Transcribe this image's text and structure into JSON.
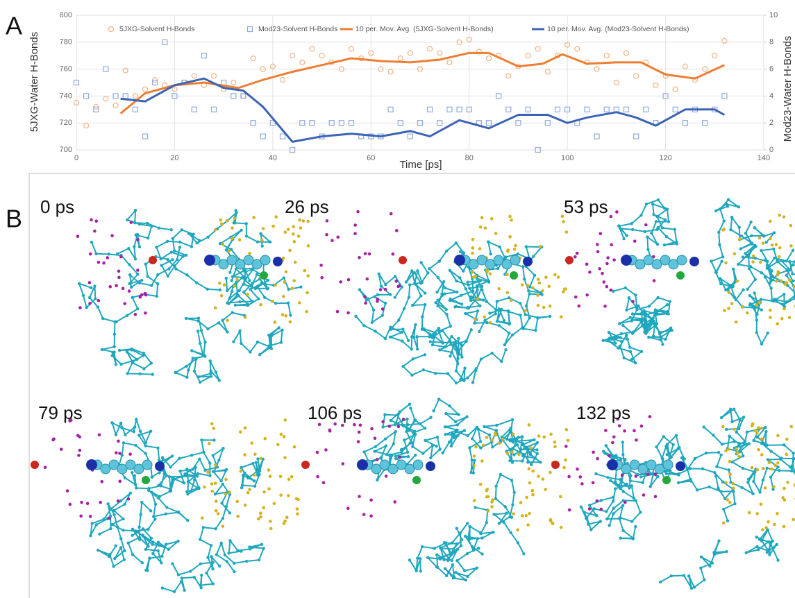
{
  "panel_labels": [
    "A",
    "B"
  ],
  "chart_data": {
    "type": "scatter",
    "xlabel": "Time [ps]",
    "ylabel": "5JXG-Water H-Bonds",
    "y2label": "Mod23-Water H-Bonds",
    "xlim": [
      0,
      140
    ],
    "xticks": [
      0,
      20,
      40,
      60,
      80,
      100,
      120,
      140
    ],
    "ylim": [
      700,
      800
    ],
    "yticks": [
      700,
      720,
      740,
      760,
      780,
      800
    ],
    "y2lim": [
      0,
      10
    ],
    "y2ticks": [
      0,
      2,
      4,
      6,
      8,
      10
    ],
    "grid": true,
    "legend": "top",
    "series": [
      {
        "name": "5JXG-Solvent H-Bonds",
        "type": "scatter",
        "marker": "circle",
        "color": "#f4b183",
        "x": [
          0,
          2,
          4,
          6,
          8,
          10,
          12,
          14,
          16,
          18,
          20,
          22,
          24,
          26,
          28,
          30,
          32,
          34,
          36,
          38,
          40,
          42,
          44,
          46,
          48,
          50,
          52,
          54,
          56,
          58,
          60,
          62,
          64,
          66,
          68,
          70,
          72,
          74,
          76,
          78,
          80,
          82,
          84,
          86,
          88,
          90,
          92,
          94,
          96,
          98,
          100,
          102,
          104,
          106,
          108,
          110,
          112,
          114,
          116,
          118,
          120,
          122,
          124,
          126,
          128,
          130,
          132
        ],
        "values": [
          735,
          718,
          732,
          738,
          733,
          759,
          740,
          745,
          752,
          748,
          745,
          750,
          755,
          748,
          755,
          745,
          750,
          740,
          768,
          760,
          762,
          752,
          770,
          765,
          775,
          770,
          765,
          760,
          775,
          768,
          772,
          760,
          758,
          768,
          772,
          760,
          775,
          772,
          765,
          780,
          782,
          773,
          768,
          770,
          755,
          762,
          770,
          775,
          758,
          770,
          778,
          775,
          765,
          760,
          770,
          750,
          772,
          755,
          765,
          748,
          755,
          745,
          762,
          752,
          760,
          770,
          781
        ]
      },
      {
        "name": "Mod23-Solvent H-Bonds",
        "type": "scatter",
        "marker": "square",
        "axis": "y2",
        "color": "#8faadc",
        "x": [
          0,
          2,
          4,
          6,
          8,
          10,
          12,
          14,
          16,
          18,
          20,
          22,
          24,
          26,
          28,
          30,
          32,
          34,
          36,
          38,
          40,
          42,
          44,
          46,
          48,
          50,
          52,
          54,
          56,
          58,
          60,
          62,
          64,
          66,
          68,
          70,
          72,
          74,
          76,
          78,
          80,
          82,
          84,
          86,
          88,
          90,
          92,
          94,
          96,
          98,
          100,
          102,
          104,
          106,
          108,
          110,
          112,
          114,
          116,
          118,
          120,
          122,
          124,
          126,
          128,
          130,
          132
        ],
        "values": [
          5,
          4,
          3,
          6,
          4,
          4,
          3,
          1,
          5,
          8,
          4,
          5,
          3,
          7,
          3,
          5,
          4,
          4,
          2,
          1,
          2,
          1,
          0,
          2,
          2,
          1,
          2,
          2,
          2,
          1,
          1,
          1,
          3,
          2,
          1,
          2,
          3,
          2,
          3,
          3,
          3,
          2,
          2,
          4,
          3,
          2,
          3,
          0,
          2,
          3,
          3,
          2,
          3,
          1,
          3,
          3,
          3,
          1,
          3,
          2,
          4,
          3,
          2,
          3,
          2,
          3,
          4
        ]
      },
      {
        "name": "10 per. Mov. Avg. (5JXG-Solvent H-Bonds)",
        "type": "line",
        "color": "#ed7d31",
        "x": [
          9,
          14,
          20,
          26,
          33,
          38,
          44,
          50,
          56,
          62,
          68,
          74,
          80,
          84,
          90,
          95,
          99,
          104,
          110,
          115,
          120,
          126,
          132
        ],
        "values": [
          727,
          742,
          748,
          750,
          746,
          752,
          758,
          763,
          768,
          766,
          765,
          767,
          772,
          772,
          762,
          764,
          771,
          764,
          765,
          765,
          756,
          753,
          763
        ]
      },
      {
        "name": "10 per. Mov. Avg. (Mod23-Solvent H-Bonds)",
        "type": "line",
        "axis": "y2",
        "color": "#3c64b4",
        "x": [
          9,
          14,
          20,
          26,
          30,
          34,
          38,
          44,
          50,
          56,
          62,
          68,
          72,
          78,
          84,
          90,
          96,
          100,
          104,
          110,
          114,
          118,
          124,
          130,
          132
        ],
        "values": [
          3.8,
          3.6,
          4.8,
          5.3,
          4.6,
          4.4,
          3.2,
          0.6,
          1.0,
          1.2,
          1.0,
          1.4,
          1.0,
          2.2,
          1.6,
          2.6,
          2.6,
          2.0,
          2.4,
          2.8,
          2.4,
          1.8,
          3.0,
          3.0,
          2.6
        ]
      }
    ]
  },
  "snapshots": [
    {
      "label": "0 ps"
    },
    {
      "label": "26 ps"
    },
    {
      "label": "53 ps"
    },
    {
      "label": "79 ps"
    },
    {
      "label": "106 ps"
    },
    {
      "label": "132 ps"
    }
  ]
}
